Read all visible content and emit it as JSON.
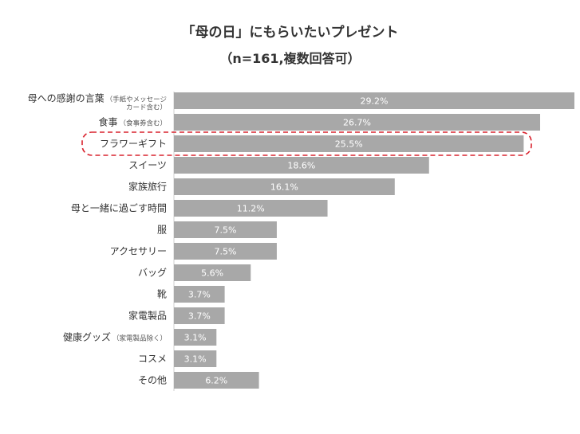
{
  "chart_data": {
    "type": "bar",
    "orientation": "horizontal",
    "title": "「母の日」にもらいたいプレゼント",
    "subtitle": "（n=161,複数回答可）",
    "categories": [
      {
        "label": "母への感謝の言葉",
        "note_lines": [
          "（手紙やメッセージ",
          "カード含む）"
        ]
      },
      {
        "label": "食事",
        "note_lines": [
          "（食事券含む）"
        ]
      },
      {
        "label": "フラワーギフト",
        "note_lines": []
      },
      {
        "label": "スイーツ",
        "note_lines": []
      },
      {
        "label": "家族旅行",
        "note_lines": []
      },
      {
        "label": "母と一緒に過ごす時間",
        "note_lines": []
      },
      {
        "label": "服",
        "note_lines": []
      },
      {
        "label": "アクセサリー",
        "note_lines": []
      },
      {
        "label": "バッグ",
        "note_lines": []
      },
      {
        "label": "靴",
        "note_lines": []
      },
      {
        "label": "家電製品",
        "note_lines": []
      },
      {
        "label": "健康グッズ",
        "note_lines": [
          "（家電製品除く）"
        ]
      },
      {
        "label": "コスメ",
        "note_lines": []
      },
      {
        "label": "その他",
        "note_lines": []
      }
    ],
    "values": [
      29.2,
      26.7,
      25.5,
      18.6,
      16.1,
      11.2,
      7.5,
      7.5,
      5.6,
      3.7,
      3.7,
      3.1,
      3.1,
      6.2
    ],
    "value_labels": [
      "29.2%",
      "26.7%",
      "25.5%",
      "18.6%",
      "16.1%",
      "11.2%",
      "7.5%",
      "7.5%",
      "5.6%",
      "3.7%",
      "3.7%",
      "3.1%",
      "3.1%",
      "6.2%"
    ],
    "xlim": [
      0,
      29.2
    ],
    "highlight_index": 2,
    "bar_color": "#a8a8a8",
    "highlight_color": "#d9232e",
    "grid": false,
    "legend": "none"
  }
}
